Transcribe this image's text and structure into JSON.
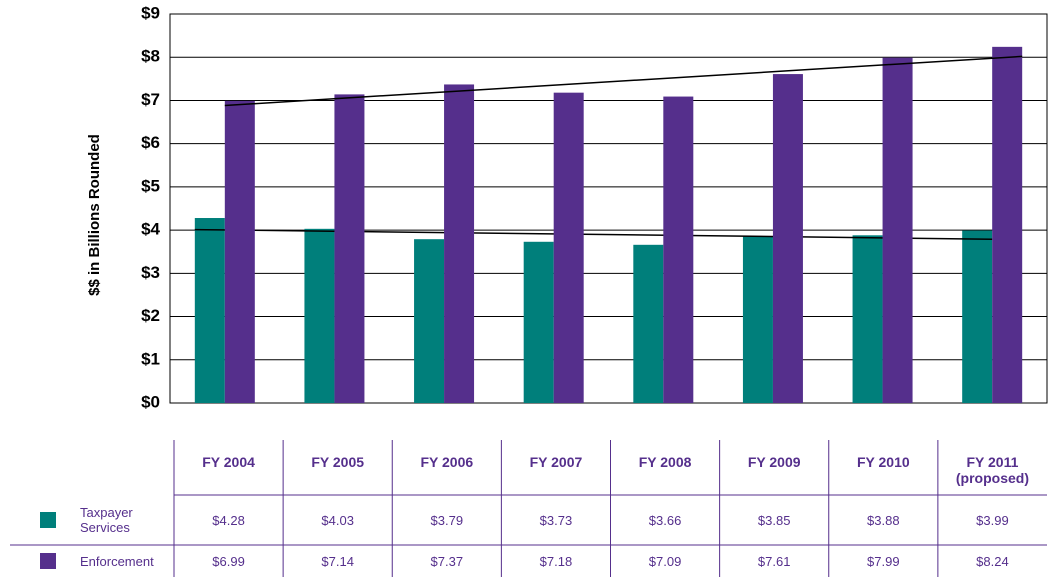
{
  "chart_data": {
    "type": "bar",
    "y_label": "$$ in Billions Rounded",
    "categories": [
      "FY 2004",
      "FY 2005",
      "FY 2006",
      "FY 2007",
      "FY 2008",
      "FY 2009",
      "FY 2010",
      "FY 2011 (proposed)"
    ],
    "series": [
      {
        "name": "Taxpayer Services",
        "color": "#007f7b",
        "values": [
          4.28,
          4.03,
          3.79,
          3.73,
          3.66,
          3.85,
          3.88,
          3.99
        ],
        "value_labels": [
          "$4.28",
          "$4.03",
          "$3.79",
          "$3.73",
          "$3.66",
          "$3.85",
          "$3.88",
          "$3.99"
        ]
      },
      {
        "name": "Enforcement",
        "color": "#552f8c",
        "values": [
          6.99,
          7.14,
          7.37,
          7.18,
          7.09,
          7.61,
          7.99,
          8.24
        ],
        "value_labels": [
          "$6.99",
          "$7.14",
          "$7.37",
          "$7.18",
          "$7.09",
          "$7.61",
          "$7.99",
          "$8.24"
        ]
      }
    ],
    "ylim": [
      0,
      9
    ],
    "yticks": [
      {
        "value": 0,
        "label": "$0"
      },
      {
        "value": 1,
        "label": "$1"
      },
      {
        "value": 2,
        "label": "$2"
      },
      {
        "value": 3,
        "label": "$3"
      },
      {
        "value": 4,
        "label": "$4"
      },
      {
        "value": 5,
        "label": "$5"
      },
      {
        "value": 6,
        "label": "$6"
      },
      {
        "value": 7,
        "label": "$7"
      },
      {
        "value": 8,
        "label": "$8"
      },
      {
        "value": 9,
        "label": "$9"
      }
    ],
    "trendline": true
  }
}
